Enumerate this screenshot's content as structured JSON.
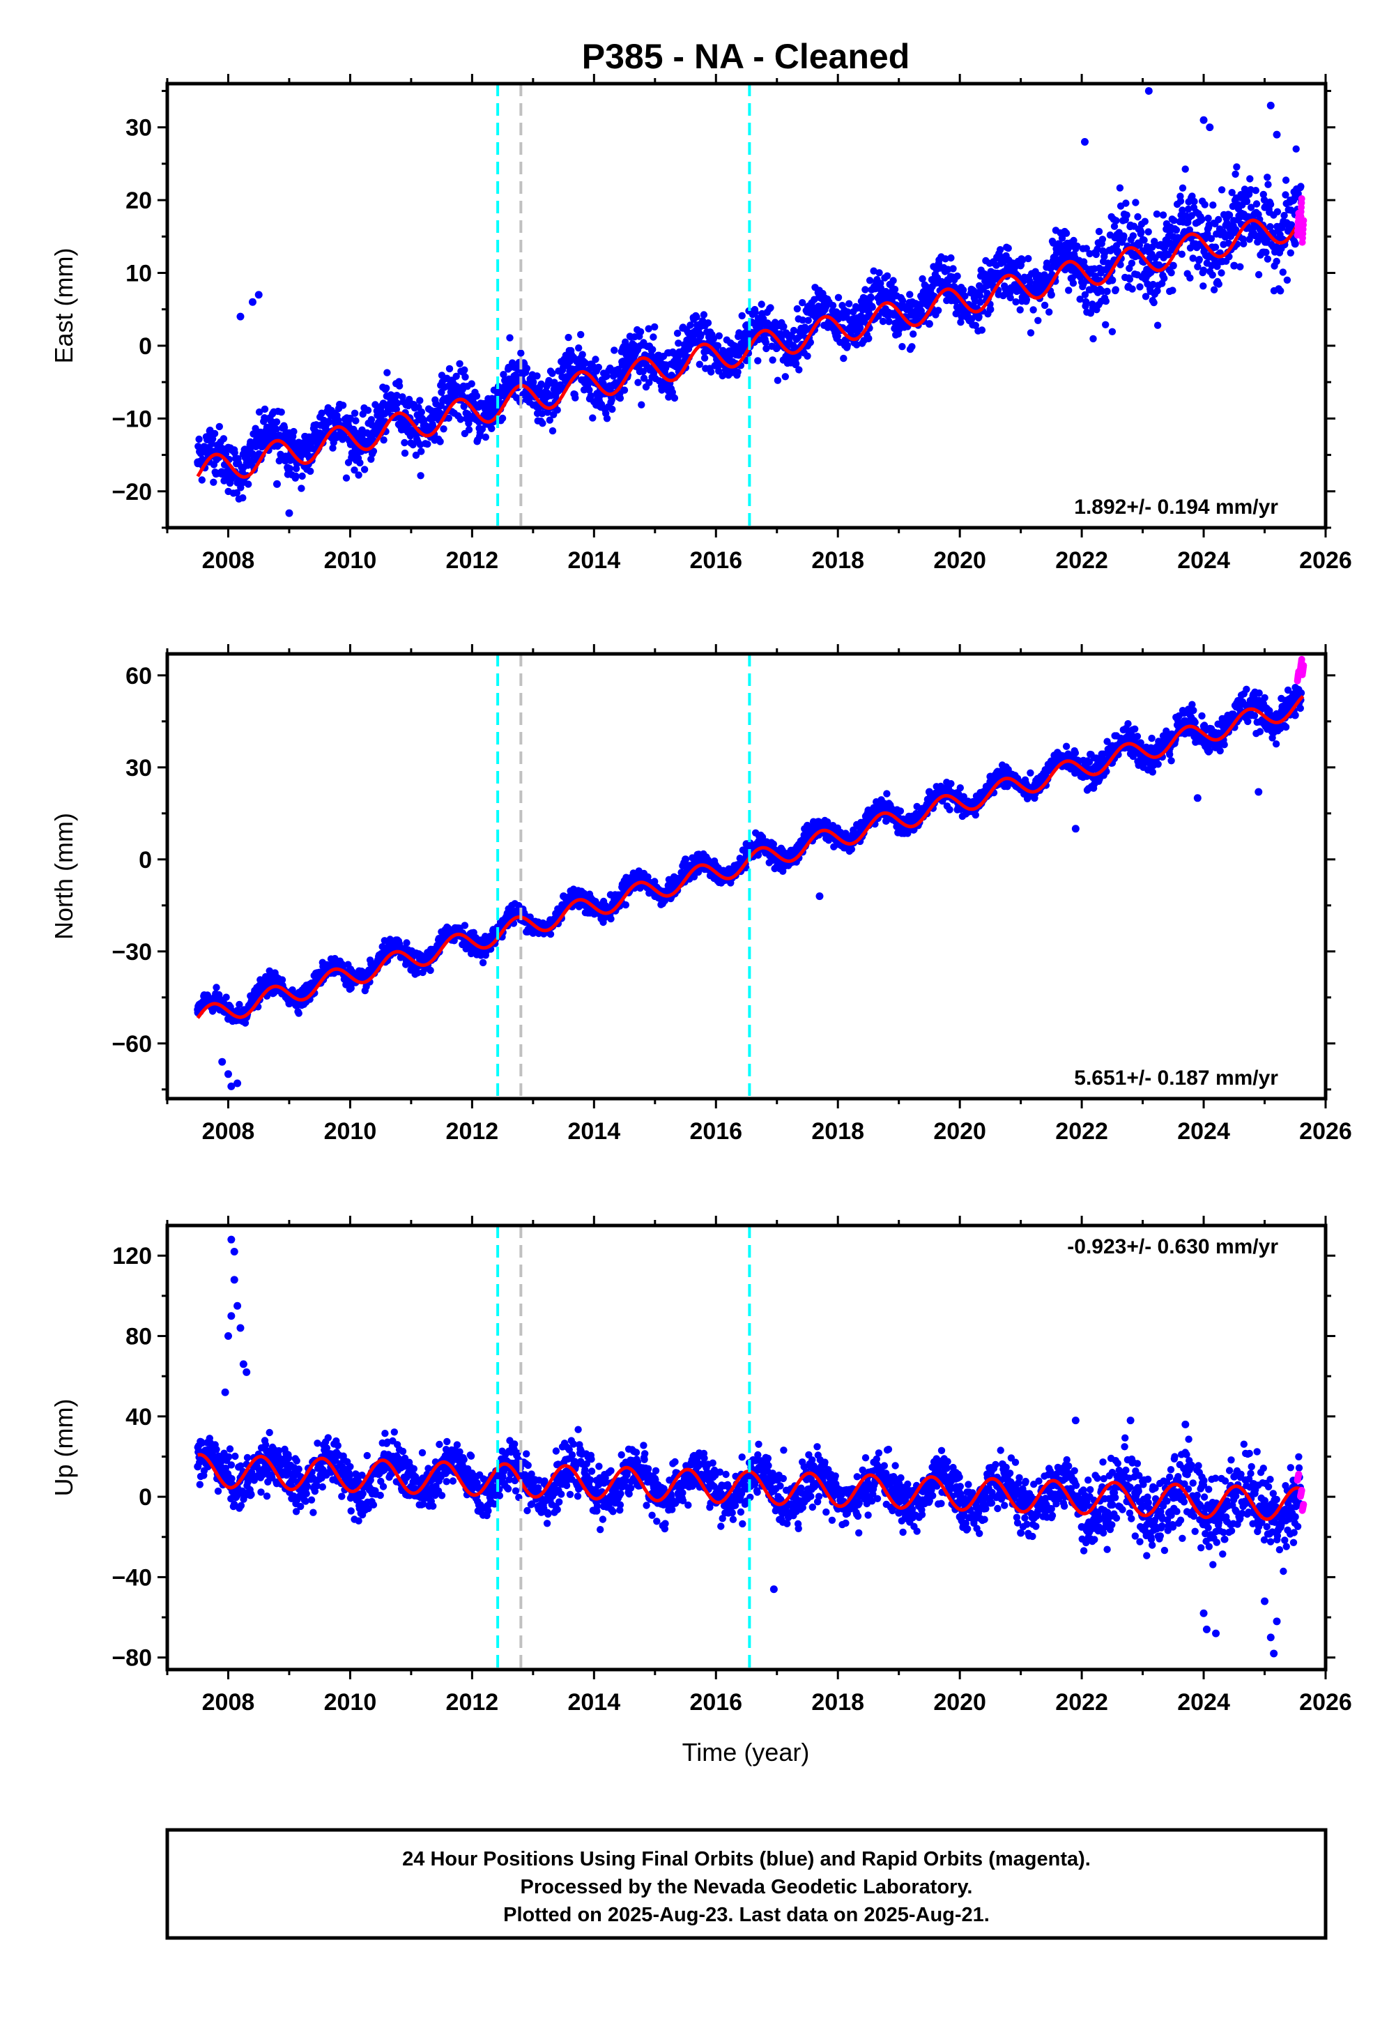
{
  "title": "P385  - NA - Cleaned",
  "xlabel": "Time (year)",
  "caption": [
    "24 Hour Positions Using Final Orbits (blue) and Rapid Orbits (magenta).",
    "Processed by the Nevada Geodetic Laboratory.",
    "Plotted on 2025-Aug-23. Last data on 2025-Aug-21."
  ],
  "colors": {
    "final_orbits": "#0000ff",
    "rapid_orbits": "#ff00ff",
    "model_fit": "#ff0000",
    "cyan_marker": "#00ffff",
    "gray_marker": "#c0c0c0",
    "frame": "#000000"
  },
  "chart_data": [
    {
      "type": "scatter",
      "component": "East",
      "ylabel": "East (mm)",
      "rate_text": "1.892+/- 0.194 mm/yr",
      "xlim": [
        2007.0,
        2026.0
      ],
      "ylim": [
        -25,
        36
      ],
      "xticks": [
        2008,
        2010,
        2012,
        2014,
        2016,
        2018,
        2020,
        2022,
        2024,
        2026
      ],
      "yticks": [
        -20,
        -10,
        0,
        10,
        20,
        30
      ],
      "vlines": [
        {
          "x": 2012.42,
          "style": "cyan"
        },
        {
          "x": 2012.8,
          "style": "gray"
        },
        {
          "x": 2016.55,
          "style": "cyan"
        }
      ],
      "series": [
        {
          "name": "Final Orbits (blue)",
          "trend": {
            "start": [
              2007.5,
              -16.5
            ],
            "rate": 1.892
          },
          "seasonal_amplitude": 2.2,
          "scatter": 1.8,
          "x": [
            2007.5,
            2008.0,
            2008.5,
            2009.0,
            2009.5,
            2010.0,
            2010.5,
            2011.0,
            2011.5,
            2012.0,
            2012.5,
            2013.0,
            2013.5,
            2014.0,
            2014.5,
            2015.0,
            2015.5,
            2016.0,
            2016.5,
            2017.0,
            2017.5,
            2018.0,
            2018.5,
            2019.0,
            2019.5,
            2020.0,
            2020.5,
            2021.0,
            2021.5,
            2022.0,
            2022.5,
            2023.0,
            2023.5,
            2024.0,
            2024.5,
            2025.0,
            2025.5
          ],
          "y": [
            -16,
            -14,
            -15,
            -12,
            -13,
            -10,
            -12,
            -8,
            -10,
            -7,
            -8,
            -5,
            -6,
            -3,
            -4,
            -2,
            -3,
            0,
            -2,
            1,
            0,
            2,
            1,
            5,
            3,
            7,
            5,
            9,
            7,
            11,
            9,
            13,
            11,
            15,
            11,
            16,
            14
          ]
        },
        {
          "name": "Rapid Orbits (magenta)",
          "x": [
            2025.55,
            2025.6,
            2025.63
          ],
          "y": [
            17,
            19,
            16
          ]
        },
        {
          "name": "Model fit",
          "model": {
            "start": [
              2007.5,
              -17.5
            ],
            "rate": 1.892,
            "amplitude": 2.0,
            "phase": -0.1
          }
        }
      ],
      "outliers": {
        "x": [
          2008.2,
          2008.4,
          2008.5,
          2008.8,
          2009.0,
          2022.05,
          2023.1,
          2024.0,
          2024.1,
          2025.1,
          2025.2
        ],
        "y": [
          4,
          6,
          7,
          -19,
          -23,
          28,
          35,
          31,
          30,
          33,
          29
        ]
      }
    },
    {
      "type": "scatter",
      "component": "North",
      "ylabel": "North (mm)",
      "rate_text": "5.651+/- 0.187 mm/yr",
      "xlim": [
        2007.0,
        2026.0
      ],
      "ylim": [
        -78,
        67
      ],
      "xticks": [
        2008,
        2010,
        2012,
        2014,
        2016,
        2018,
        2020,
        2022,
        2024,
        2026
      ],
      "yticks": [
        -60,
        -30,
        0,
        30,
        60
      ],
      "vlines": [
        {
          "x": 2012.42,
          "style": "cyan"
        },
        {
          "x": 2012.8,
          "style": "gray"
        },
        {
          "x": 2016.55,
          "style": "cyan"
        }
      ],
      "series": [
        {
          "name": "Final Orbits (blue)",
          "trend": {
            "start": [
              2007.5,
              -51
            ],
            "rate": 5.651
          },
          "seasonal_amplitude": 3.8,
          "scatter": 1.6,
          "x": [
            2007.5,
            2008.0,
            2008.5,
            2009.0,
            2009.5,
            2010.0,
            2010.5,
            2011.0,
            2011.5,
            2012.0,
            2012.5,
            2013.0,
            2013.5,
            2014.0,
            2014.5,
            2015.0,
            2015.5,
            2016.0,
            2016.5,
            2017.0,
            2017.5,
            2018.0,
            2018.5,
            2019.0,
            2019.5,
            2020.0,
            2020.5,
            2021.0,
            2021.5,
            2022.0,
            2022.5,
            2023.0,
            2023.5,
            2024.0,
            2024.5,
            2025.0,
            2025.5
          ],
          "y": [
            -49,
            -52,
            -45,
            -47,
            -38,
            -41,
            -32,
            -36,
            -27,
            -30,
            -20,
            -24,
            -12,
            -17,
            -7,
            -12,
            0,
            -5,
            5,
            0,
            11,
            5,
            16,
            11,
            22,
            17,
            27,
            23,
            32,
            28,
            37,
            34,
            40,
            38,
            46,
            44,
            47
          ]
        },
        {
          "name": "Rapid Orbits (magenta)",
          "x": [
            2025.55,
            2025.6,
            2025.63
          ],
          "y": [
            60,
            64,
            62
          ]
        },
        {
          "name": "Model fit",
          "model": {
            "start": [
              2007.5,
              -52
            ],
            "rate": 5.651,
            "amplitude": 3.5,
            "phase": -0.05
          }
        }
      ],
      "outliers": {
        "x": [
          2007.9,
          2008.0,
          2008.05,
          2008.15,
          2017.7,
          2021.9,
          2023.9,
          2024.9
        ],
        "y": [
          -66,
          -70,
          -74,
          -73,
          -12,
          10,
          20,
          22
        ]
      }
    },
    {
      "type": "scatter",
      "component": "Up",
      "ylabel": "Up (mm)",
      "rate_text": "-0.923+/- 0.630 mm/yr",
      "xlim": [
        2007.0,
        2026.0
      ],
      "ylim": [
        -86,
        135
      ],
      "xticks": [
        2008,
        2010,
        2012,
        2014,
        2016,
        2018,
        2020,
        2022,
        2024,
        2026
      ],
      "yticks": [
        -80,
        -40,
        0,
        40,
        80,
        120
      ],
      "vlines": [
        {
          "x": 2012.42,
          "style": "cyan"
        },
        {
          "x": 2012.8,
          "style": "gray"
        },
        {
          "x": 2016.55,
          "style": "cyan"
        }
      ],
      "series": [
        {
          "name": "Final Orbits (blue)",
          "trend": {
            "start": [
              2007.5,
              13
            ],
            "rate": -0.923
          },
          "seasonal_amplitude": 7.5,
          "scatter": 6,
          "x": [
            2007.5,
            2008.0,
            2008.5,
            2009.0,
            2009.5,
            2010.0,
            2010.5,
            2011.0,
            2011.5,
            2012.0,
            2012.5,
            2013.0,
            2013.5,
            2014.0,
            2014.5,
            2015.0,
            2015.5,
            2016.0,
            2016.5,
            2017.0,
            2017.5,
            2018.0,
            2018.5,
            2019.0,
            2019.5,
            2020.0,
            2020.5,
            2021.0,
            2021.5,
            2022.0,
            2022.5,
            2023.0,
            2023.5,
            2024.0,
            2024.5,
            2025.0,
            2025.5
          ],
          "y": [
            15,
            10,
            18,
            6,
            18,
            6,
            17,
            5,
            15,
            4,
            10,
            2,
            10,
            0,
            8,
            -2,
            7,
            -3,
            4,
            -5,
            2,
            -6,
            0,
            -8,
            -2,
            -10,
            -3,
            -18,
            -6,
            -15,
            -4,
            -16,
            6,
            8,
            10,
            -2,
            -10
          ]
        },
        {
          "name": "Rapid Orbits (magenta)",
          "x": [
            2025.55,
            2025.6,
            2025.63
          ],
          "y": [
            10,
            2,
            -5
          ]
        },
        {
          "name": "Model fit",
          "model": {
            "start": [
              2007.5,
              13
            ],
            "rate": -0.923,
            "amplitude": 8,
            "phase": 0.15
          }
        }
      ],
      "outliers": {
        "x": [
          2007.95,
          2008.0,
          2008.05,
          2008.1,
          2008.15,
          2008.2,
          2008.25,
          2008.3,
          2008.05,
          2008.1,
          2016.95,
          2021.9,
          2022.8,
          2023.7,
          2024.0,
          2024.05,
          2024.2,
          2025.1,
          2025.15,
          2025.2,
          2025.0
        ],
        "y": [
          52,
          80,
          90,
          108,
          95,
          84,
          66,
          62,
          128,
          122,
          -46,
          38,
          38,
          36,
          -58,
          -66,
          -68,
          -70,
          -78,
          -62,
          -52
        ]
      }
    }
  ]
}
